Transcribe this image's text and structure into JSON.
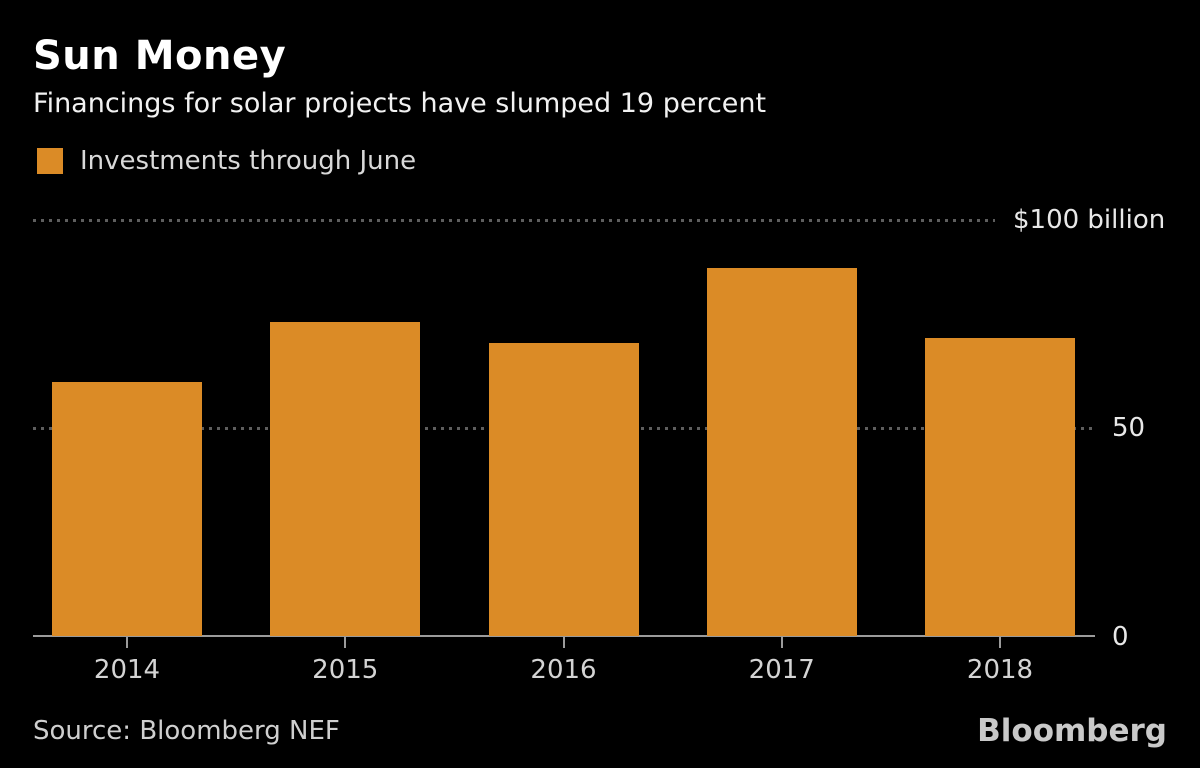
{
  "header": {
    "title": "Sun Money",
    "subtitle": "Financings for solar projects have slumped 19 percent"
  },
  "legend": {
    "label": "Investments through June"
  },
  "chart_data": {
    "type": "bar",
    "title": "Sun Money",
    "subtitle": "Financings for solar projects have slumped 19 percent",
    "series_name": "Investments through June",
    "categories": [
      "2014",
      "2015",
      "2016",
      "2017",
      "2018"
    ],
    "values": [
      61,
      75.5,
      70.5,
      88.4,
      71.6
    ],
    "unit": "billion USD",
    "xlabel": "",
    "ylabel": "",
    "ylim": [
      0,
      100
    ],
    "yticks": [
      {
        "value": 100,
        "label": "$100 billion"
      },
      {
        "value": 50,
        "label": "50"
      },
      {
        "value": 0,
        "label": "0"
      }
    ],
    "grid": "horizontal dotted gridlines at 50 and 100, solid baseline at 0",
    "legend_position": "top-left",
    "bar_color": "#db8b26",
    "background_color": "#000000"
  },
  "footer": {
    "source": "Source: Bloomberg NEF",
    "logo": "Bloomberg"
  }
}
